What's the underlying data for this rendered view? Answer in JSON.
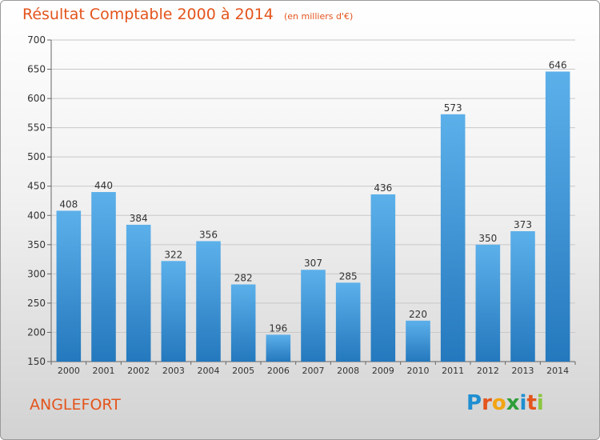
{
  "header": {
    "title": "Résultat Comptable 2000 à 2014",
    "subtitle": "(en milliers d'€)"
  },
  "footer": {
    "commune": "ANGLEFORT",
    "logo_text": "Proxiti",
    "logo_letters": [
      {
        "char": "P",
        "color": "#1f8fd1"
      },
      {
        "char": "r",
        "color": "#e4541c"
      },
      {
        "char": "o",
        "color": "#f2a412"
      },
      {
        "char": "x",
        "color": "#2f9e3a"
      },
      {
        "char": "i",
        "color": "#1f8fd1"
      },
      {
        "char": "t",
        "color": "#e4541c"
      },
      {
        "char": "i",
        "color": "#8cc63f"
      }
    ]
  },
  "chart_data": {
    "type": "bar",
    "categories": [
      "2000",
      "2001",
      "2002",
      "2003",
      "2004",
      "2005",
      "2006",
      "2007",
      "2008",
      "2009",
      "2010",
      "2011",
      "2012",
      "2013",
      "2014"
    ],
    "values": [
      408,
      440,
      384,
      322,
      356,
      282,
      196,
      307,
      285,
      436,
      220,
      573,
      350,
      373,
      646
    ],
    "ylim": [
      150,
      700
    ],
    "yticks": [
      150,
      200,
      250,
      300,
      350,
      400,
      450,
      500,
      550,
      600,
      650,
      700
    ],
    "grid": true,
    "colors": {
      "bar_light": "#5cb0ea",
      "bar_dark": "#2478bd",
      "grid": "#c8c8c8",
      "text": "#333333"
    }
  }
}
